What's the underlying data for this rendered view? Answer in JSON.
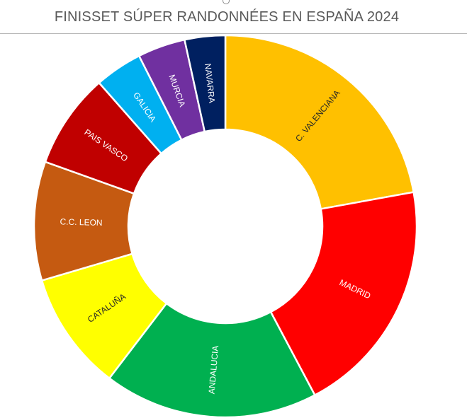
{
  "chart_data": {
    "type": "pie",
    "subtype": "doughnut",
    "title": "FINISSET SÚPER RANDONNÉES EN ESPAÑA 2024",
    "categories": [
      "C. VALENCIANA",
      "MADRID",
      "ANDALUCIA",
      "CATALUÑA",
      "C.C. LEON",
      "PAIS VASCO",
      "GALICIA",
      "MURCIA",
      "NAVARRA"
    ],
    "values": [
      11,
      10,
      9,
      5,
      5,
      4,
      2,
      2,
      1.7
    ],
    "colors": [
      "#FFC000",
      "#FF0000",
      "#00B050",
      "#FFFF00",
      "#C55A11",
      "#C00000",
      "#00B0F0",
      "#7030A0",
      "#002060"
    ],
    "label_colors": [
      "#262626",
      "#ffffff",
      "#ffffff",
      "#262626",
      "#ffffff",
      "#ffffff",
      "#ffffff",
      "#ffffff",
      "#ffffff"
    ],
    "legend": "none",
    "start_angle_deg": 0,
    "direction": "clockwise"
  }
}
